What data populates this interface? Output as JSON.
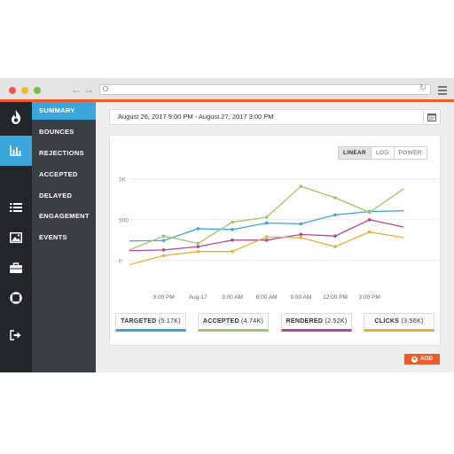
{
  "browser": {
    "back_arrow": "←",
    "forward_arrow": "→",
    "reload_glyph": "↻",
    "dot_colors": [
      "#ee5a4a",
      "#f3bb2c",
      "#72bf44"
    ]
  },
  "sidebar": {
    "icons": [
      "flame-logo-icon",
      "bar-chart-icon",
      "list-icon",
      "image-icon",
      "briefcase-icon",
      "lifebuoy-icon",
      "logout-icon"
    ],
    "active_icon": "bar-chart-icon",
    "items": [
      {
        "label": "SUMMARY",
        "active": true
      },
      {
        "label": "BOUNCES",
        "active": false
      },
      {
        "label": "REJECTIONS",
        "active": false
      },
      {
        "label": "ACCEPTED",
        "active": false
      },
      {
        "label": "DELAYED",
        "active": false
      },
      {
        "label": "ENGAGEMENT",
        "active": false
      },
      {
        "label": "EVENTS",
        "active": false
      }
    ]
  },
  "date_range": {
    "text": "August 26, 2017 9:00 PM - August 27, 2017 3:00 PM",
    "calendar_icon": "calendar-icon"
  },
  "scale_toggle": {
    "options": [
      "LINEAR",
      "LOG",
      "POWER"
    ],
    "selected": "LINEAR"
  },
  "chart_data": {
    "type": "line",
    "y_ticks": [
      "1K",
      "500",
      "0"
    ],
    "y_tick_values": [
      1000,
      500,
      0
    ],
    "ylim": [
      -100,
      1150
    ],
    "x_ticks": [
      "9:00 PM",
      "Aug-17",
      "3:00 AM",
      "6:00 AM",
      "9:00 AM",
      "12:00 PM",
      "3:00 PM"
    ],
    "x": [
      0,
      1,
      2,
      3,
      4,
      5,
      6,
      7,
      8,
      9
    ],
    "grid": "horizontal",
    "series": [
      {
        "name": "TARGETED",
        "color": "#3aa6dc",
        "values": [
          240,
          245,
          390,
          380,
          460,
          450,
          560,
          600,
          610,
          null
        ]
      },
      {
        "name": "ACCEPTED",
        "color": "#9ec56b",
        "values": [
          130,
          300,
          210,
          470,
          530,
          910,
          770,
          590,
          880,
          null
        ]
      },
      {
        "name": "RENDERED",
        "color": "#b2489c",
        "values": [
          120,
          130,
          170,
          250,
          250,
          320,
          300,
          500,
          410,
          null
        ]
      },
      {
        "name": "CLICKS",
        "color": "#e1b434",
        "values": [
          -50,
          60,
          110,
          110,
          290,
          280,
          170,
          350,
          280,
          null
        ]
      }
    ],
    "legend": [
      {
        "label": "TARGETED",
        "value": "(5.17K)",
        "color": "#3aa6dc"
      },
      {
        "label": "ACCEPTED",
        "value": "(4.74K)",
        "color": "#9ec56b"
      },
      {
        "label": "RENDERED",
        "value": "(2.52K)",
        "color": "#b2489c"
      },
      {
        "label": "CLICKS",
        "value": "(3.56K)",
        "color": "#e1b434"
      }
    ]
  },
  "add_button": {
    "label": "ADD"
  },
  "colors": {
    "accent": "#f05a28",
    "nav_active": "#3aa6dc",
    "sidebar_dark": "#232629",
    "nav_panel": "#3b3e42"
  }
}
